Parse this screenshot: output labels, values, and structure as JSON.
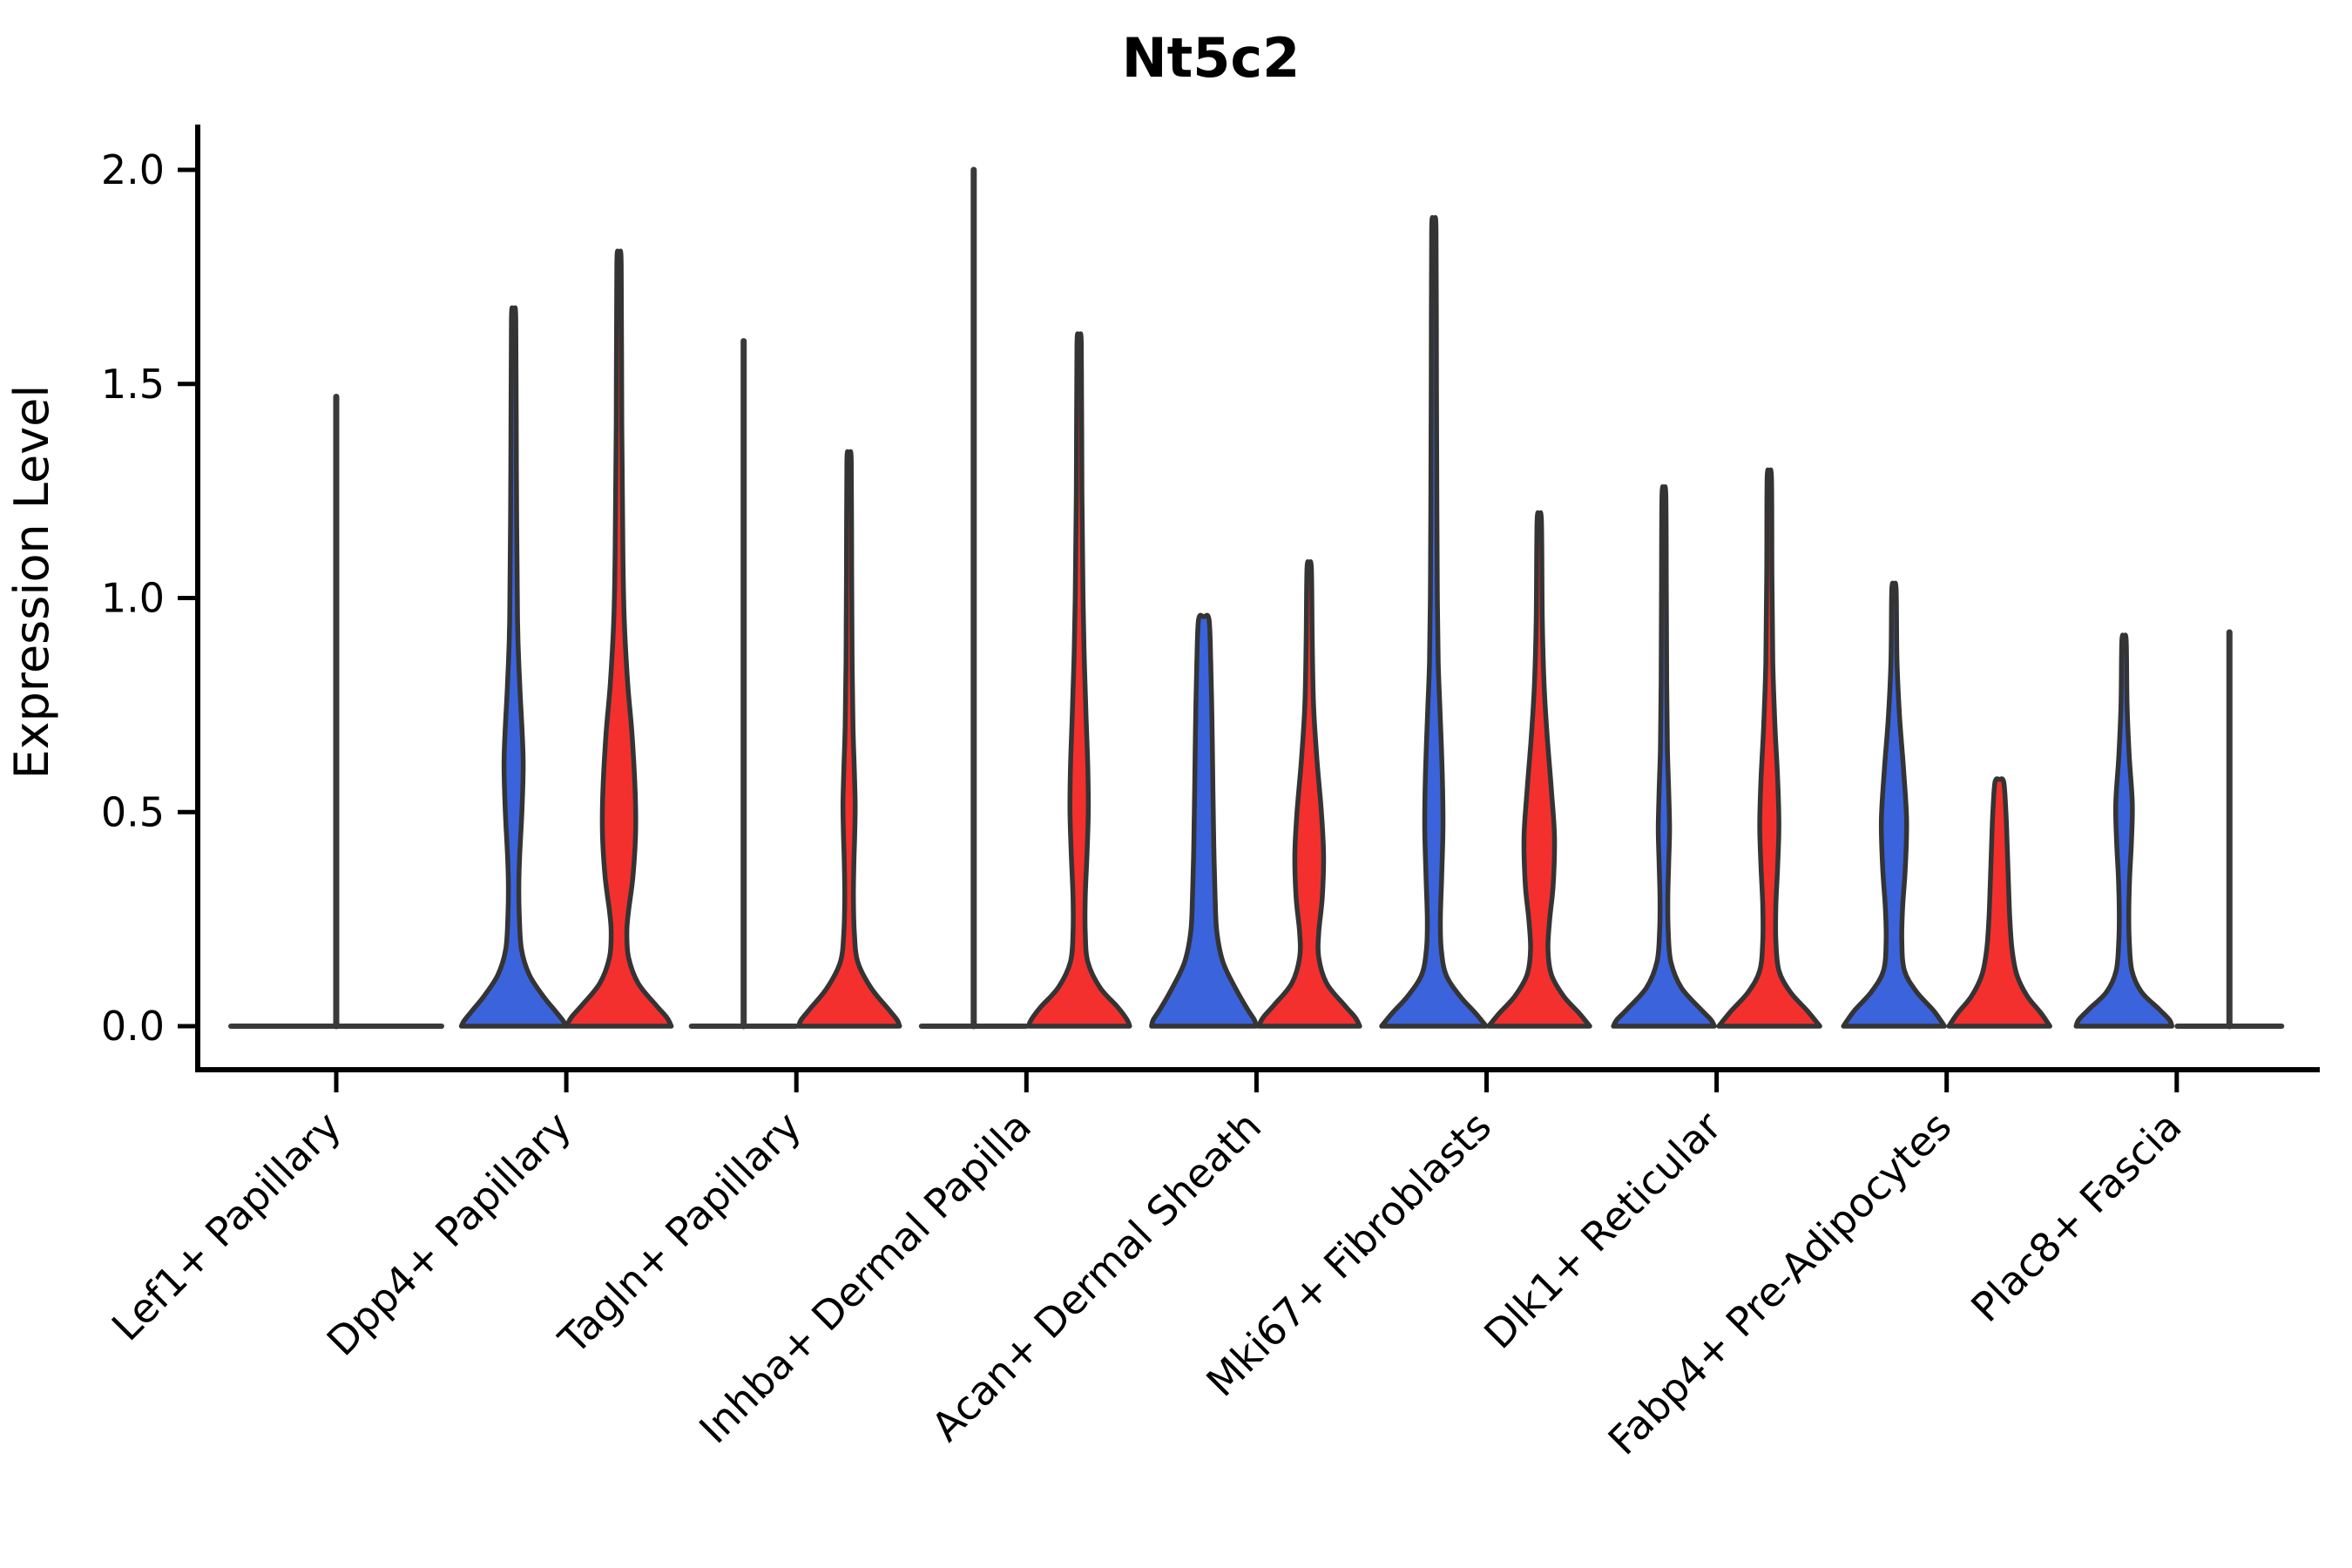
{
  "chart_data": {
    "type": "violin",
    "title": "Nt5c2",
    "xlabel": "",
    "ylabel": "Expression Level",
    "ylim": [
      0,
      2.1
    ],
    "yticks": [
      0.0,
      0.5,
      1.0,
      1.5,
      2.0
    ],
    "grid": false,
    "legend": "none",
    "categories": [
      "Lef1+ Papillary",
      "Dpp4+ Papillary",
      "Tagln+ Papillary",
      "Inhba+ Dermal Papilla",
      "Acan+ Dermal Sheath",
      "Mki67+ Fibroblasts",
      "Dlk1+ Reticular",
      "Fabp4+ Pre-Adipocytes",
      "Plac8+ Fascia"
    ],
    "series": [
      {
        "name": "blue",
        "color": "#3B63DC",
        "position": "left"
      },
      {
        "name": "red",
        "color": "#F3302E",
        "position": "right"
      }
    ],
    "violins": [
      {
        "category": "Lef1+ Papillary",
        "violins": [
          {
            "series": "none",
            "span": "full",
            "shape": "flat",
            "max": 1.47
          }
        ]
      },
      {
        "category": "Dpp4+ Papillary",
        "violins": [
          {
            "series": "blue",
            "span": "half",
            "shape": "bulge",
            "max": 1.65,
            "profile": [
              [
                1.65,
                2.5
              ],
              [
                1.3,
                3.2
              ],
              [
                0.95,
                4.5
              ],
              [
                0.8,
                7
              ],
              [
                0.7,
                9.5
              ],
              [
                0.61,
                11
              ],
              [
                0.5,
                9.5
              ],
              [
                0.4,
                7
              ],
              [
                0.33,
                6
              ],
              [
                0.26,
                6.5
              ],
              [
                0.18,
                9
              ],
              [
                0.12,
                18
              ],
              [
                0.07,
                34
              ],
              [
                0.035,
                48
              ],
              [
                0.012,
                57
              ],
              [
                0,
                60
              ]
            ]
          },
          {
            "series": "red",
            "span": "half",
            "shape": "bulge",
            "max": 1.78,
            "profile": [
              [
                1.78,
                2.5
              ],
              [
                1.4,
                3.2
              ],
              [
                1.1,
                4.5
              ],
              [
                0.95,
                6
              ],
              [
                0.8,
                10
              ],
              [
                0.68,
                15
              ],
              [
                0.55,
                18.5
              ],
              [
                0.45,
                19
              ],
              [
                0.35,
                16
              ],
              [
                0.27,
                11
              ],
              [
                0.22,
                9
              ],
              [
                0.16,
                11
              ],
              [
                0.1,
                22
              ],
              [
                0.05,
                42
              ],
              [
                0.02,
                55
              ],
              [
                0,
                60
              ]
            ]
          }
        ]
      },
      {
        "category": "Tagln+ Papillary",
        "violins": [
          {
            "series": "blue",
            "span": "half",
            "shape": "flat",
            "max": 1.6
          },
          {
            "series": "red",
            "span": "half",
            "shape": "bulge",
            "max": 1.32,
            "profile": [
              [
                1.32,
                2.5
              ],
              [
                1.05,
                3
              ],
              [
                0.85,
                3.5
              ],
              [
                0.7,
                4.5
              ],
              [
                0.6,
                6
              ],
              [
                0.52,
                7
              ],
              [
                0.45,
                6.5
              ],
              [
                0.38,
                5.5
              ],
              [
                0.3,
                5
              ],
              [
                0.22,
                6
              ],
              [
                0.15,
                10
              ],
              [
                0.09,
                25
              ],
              [
                0.04,
                45
              ],
              [
                0.015,
                55
              ],
              [
                0,
                58
              ]
            ]
          }
        ]
      },
      {
        "category": "Inhba+ Dermal Papilla",
        "violins": [
          {
            "series": "blue",
            "span": "half",
            "shape": "flat",
            "max": 2.0
          },
          {
            "series": "red",
            "span": "half",
            "shape": "bulge",
            "max": 1.59,
            "profile": [
              [
                1.59,
                2.5
              ],
              [
                1.25,
                3.2
              ],
              [
                1.0,
                4.5
              ],
              [
                0.85,
                6
              ],
              [
                0.72,
                8
              ],
              [
                0.6,
                10
              ],
              [
                0.5,
                10.5
              ],
              [
                0.4,
                9
              ],
              [
                0.3,
                7
              ],
              [
                0.22,
                7
              ],
              [
                0.15,
                10
              ],
              [
                0.09,
                24
              ],
              [
                0.045,
                44
              ],
              [
                0.015,
                55
              ],
              [
                0,
                58
              ]
            ]
          }
        ]
      },
      {
        "category": "Acan+ Dermal Sheath",
        "violins": [
          {
            "series": "blue",
            "span": "half",
            "shape": "column",
            "max": 0.95,
            "profile": [
              [
                0.95,
                6
              ],
              [
                0.85,
                8
              ],
              [
                0.7,
                9.5
              ],
              [
                0.55,
                10.5
              ],
              [
                0.42,
                11.5
              ],
              [
                0.3,
                13
              ],
              [
                0.22,
                15
              ],
              [
                0.15,
                22
              ],
              [
                0.09,
                36
              ],
              [
                0.04,
                50
              ],
              [
                0.015,
                58
              ],
              [
                0,
                60
              ]
            ]
          },
          {
            "series": "red",
            "span": "half",
            "shape": "bulge",
            "max": 1.07,
            "profile": [
              [
                1.07,
                2.5
              ],
              [
                0.9,
                3.5
              ],
              [
                0.75,
                5
              ],
              [
                0.62,
                9
              ],
              [
                0.5,
                14
              ],
              [
                0.4,
                16.5
              ],
              [
                0.3,
                15
              ],
              [
                0.22,
                11
              ],
              [
                0.16,
                11
              ],
              [
                0.1,
                20
              ],
              [
                0.05,
                40
              ],
              [
                0.02,
                53
              ],
              [
                0,
                58
              ]
            ]
          }
        ]
      },
      {
        "category": "Mki67+ Fibroblasts",
        "violins": [
          {
            "series": "blue",
            "span": "half",
            "shape": "bulge",
            "max": 1.86,
            "profile": [
              [
                1.86,
                2.5
              ],
              [
                1.5,
                3
              ],
              [
                1.2,
                3.5
              ],
              [
                1.0,
                4
              ],
              [
                0.85,
                5
              ],
              [
                0.74,
                7
              ],
              [
                0.6,
                9.5
              ],
              [
                0.47,
                10.5
              ],
              [
                0.35,
                9
              ],
              [
                0.25,
                7.5
              ],
              [
                0.18,
                8.5
              ],
              [
                0.12,
                14
              ],
              [
                0.07,
                30
              ],
              [
                0.03,
                48
              ],
              [
                0,
                60
              ]
            ]
          },
          {
            "series": "red",
            "span": "half",
            "shape": "bulge",
            "max": 1.18,
            "profile": [
              [
                1.18,
                2.5
              ],
              [
                0.95,
                3.5
              ],
              [
                0.8,
                5.5
              ],
              [
                0.68,
                9
              ],
              [
                0.55,
                14
              ],
              [
                0.44,
                17.5
              ],
              [
                0.33,
                16
              ],
              [
                0.25,
                12
              ],
              [
                0.18,
                10
              ],
              [
                0.12,
                14
              ],
              [
                0.07,
                28
              ],
              [
                0.03,
                46
              ],
              [
                0,
                58
              ]
            ]
          }
        ]
      },
      {
        "category": "Dlk1+ Reticular",
        "violins": [
          {
            "series": "blue",
            "span": "half",
            "shape": "bulge",
            "max": 1.24,
            "profile": [
              [
                1.24,
                2.2
              ],
              [
                1.0,
                2.8
              ],
              [
                0.8,
                3.2
              ],
              [
                0.65,
                4
              ],
              [
                0.55,
                5.5
              ],
              [
                0.46,
                6.5
              ],
              [
                0.38,
                5.5
              ],
              [
                0.3,
                4.5
              ],
              [
                0.22,
                5
              ],
              [
                0.15,
                8
              ],
              [
                0.09,
                20
              ],
              [
                0.04,
                42
              ],
              [
                0.015,
                54
              ],
              [
                0,
                58
              ]
            ]
          },
          {
            "series": "red",
            "span": "half",
            "shape": "bulge",
            "max": 1.28,
            "profile": [
              [
                1.28,
                2.5
              ],
              [
                1.05,
                3
              ],
              [
                0.85,
                4
              ],
              [
                0.7,
                6.5
              ],
              [
                0.58,
                9.5
              ],
              [
                0.47,
                11
              ],
              [
                0.37,
                9.5
              ],
              [
                0.28,
                7.5
              ],
              [
                0.2,
                7.5
              ],
              [
                0.13,
                11
              ],
              [
                0.08,
                24
              ],
              [
                0.035,
                44
              ],
              [
                0,
                58
              ]
            ]
          }
        ]
      },
      {
        "category": "Fabp4+ Pre-Adipocytes",
        "violins": [
          {
            "series": "blue",
            "span": "half",
            "shape": "bulge",
            "max": 1.02,
            "profile": [
              [
                1.02,
                2.5
              ],
              [
                0.85,
                3.5
              ],
              [
                0.72,
                6.5
              ],
              [
                0.6,
                11
              ],
              [
                0.48,
                14.5
              ],
              [
                0.37,
                13
              ],
              [
                0.28,
                10
              ],
              [
                0.2,
                9
              ],
              [
                0.13,
                12
              ],
              [
                0.08,
                26
              ],
              [
                0.035,
                46
              ],
              [
                0,
                58
              ]
            ]
          },
          {
            "series": "red",
            "span": "half",
            "shape": "column",
            "max": 0.57,
            "profile": [
              [
                0.57,
                5
              ],
              [
                0.5,
                7.5
              ],
              [
                0.42,
                9
              ],
              [
                0.33,
                10.5
              ],
              [
                0.25,
                12
              ],
              [
                0.18,
                14.5
              ],
              [
                0.12,
                20
              ],
              [
                0.07,
                32
              ],
              [
                0.03,
                48
              ],
              [
                0,
                58
              ]
            ]
          }
        ]
      },
      {
        "category": "Plac8+ Fascia",
        "violins": [
          {
            "series": "blue",
            "span": "half",
            "shape": "bulge",
            "max": 0.9,
            "profile": [
              [
                0.9,
                2.5
              ],
              [
                0.75,
                3.5
              ],
              [
                0.63,
                6
              ],
              [
                0.52,
                9.5
              ],
              [
                0.43,
                8.5
              ],
              [
                0.35,
                6.5
              ],
              [
                0.27,
                5.5
              ],
              [
                0.2,
                6
              ],
              [
                0.13,
                9
              ],
              [
                0.08,
                20
              ],
              [
                0.04,
                40
              ],
              [
                0.015,
                52
              ],
              [
                0,
                55
              ]
            ]
          },
          {
            "series": "red",
            "span": "half",
            "shape": "flat",
            "max": 0.92
          }
        ]
      }
    ],
    "colors": {
      "blue_fill": "#3B63DC",
      "red_fill": "#F3302E",
      "violin_outline": "#343434",
      "flat_line": "#3a3a3a",
      "axis": "#000000",
      "background": "#ffffff"
    }
  }
}
